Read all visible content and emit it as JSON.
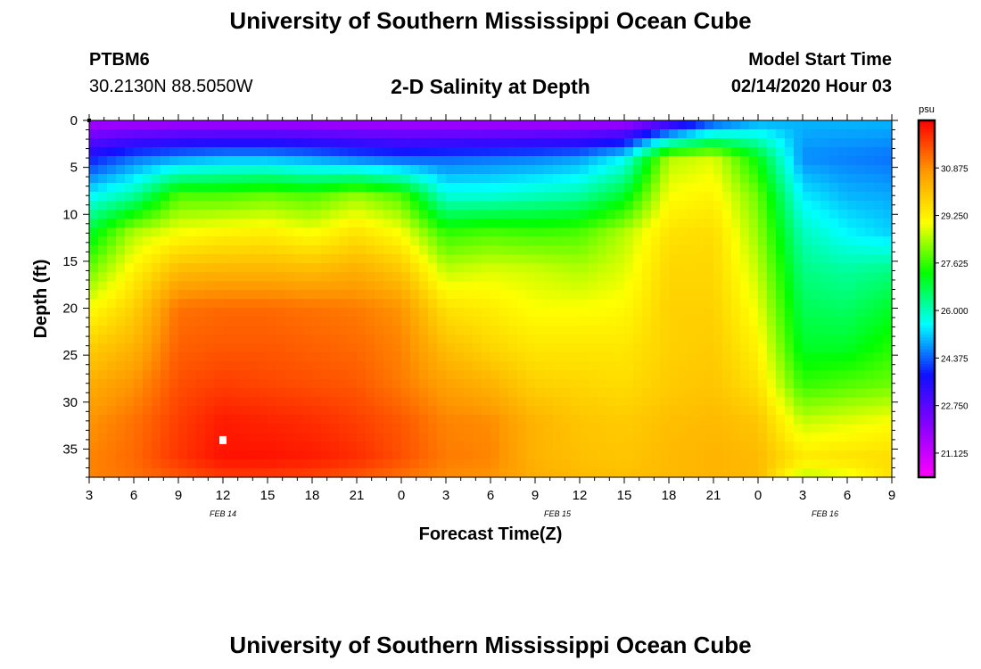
{
  "header": {
    "title": "University of Southern Mississippi Ocean Cube",
    "station_id": "PTBM6",
    "station_coords": "30.2130N 88.5050W",
    "plot_subtitle": "2-D Salinity at Depth",
    "model_start_label": "Model Start Time",
    "model_start_value": "02/14/2020 Hour 03"
  },
  "footer": {
    "title": "University of Southern Mississippi Ocean Cube"
  },
  "colors": {
    "colormap": [
      "#ff00ff",
      "#8a00ff",
      "#1010ff",
      "#00ffff",
      "#00ff00",
      "#ffff00",
      "#ff9900",
      "#ff0000"
    ],
    "marker": "#ffffff"
  },
  "chart_data": {
    "type": "heatmap",
    "title": "2-D Salinity at Depth",
    "xlabel": "Forecast Time(Z)",
    "ylabel": "Depth (ft)",
    "x_hours": [
      0,
      3,
      6,
      9,
      12,
      15,
      18,
      21,
      24,
      27,
      30,
      33,
      36,
      39,
      42,
      45,
      48,
      51,
      54
    ],
    "x_tick_labels": [
      "3",
      "6",
      "9",
      "12",
      "15",
      "18",
      "21",
      "0",
      "3",
      "6",
      "9",
      "12",
      "15",
      "18",
      "21",
      "0",
      "3",
      "6",
      "9"
    ],
    "date_labels": [
      {
        "hour": 9,
        "text": "FEB 14"
      },
      {
        "hour": 31.5,
        "text": "FEB 15"
      },
      {
        "hour": 49.5,
        "text": "FEB 16"
      }
    ],
    "y_tick_labels": [
      0,
      5,
      10,
      15,
      20,
      25,
      30,
      35
    ],
    "ylim": [
      0,
      38
    ],
    "colorbar": {
      "unit": "psu",
      "vmin": 20.3,
      "vmax": 32.5,
      "tick_values": [
        21.125,
        22.75,
        24.375,
        26.0,
        27.625,
        29.25,
        30.875
      ],
      "tick_labels": [
        "21.125",
        "22.750",
        "24.375",
        "26.000",
        "27.625",
        "29.250",
        "30.875"
      ]
    },
    "depth_levels": [
      0,
      4,
      8,
      12,
      16,
      20,
      24,
      28,
      32,
      36,
      38
    ],
    "salinity_psu": [
      [
        21.5,
        21.5,
        21.5,
        21.5,
        21.5,
        21.5,
        21.5,
        21.5,
        21.5,
        21.5,
        21.5,
        21.5,
        21.5,
        22.5,
        24.0,
        24.8,
        25.0,
        25.0,
        25.0
      ],
      [
        23.8,
        24.5,
        24.8,
        25.0,
        25.0,
        24.8,
        24.5,
        24.3,
        24.4,
        24.5,
        24.6,
        24.8,
        25.5,
        28.5,
        28.8,
        27.2,
        24.7,
        24.6,
        24.5
      ],
      [
        25.5,
        26.2,
        27.8,
        27.8,
        28.0,
        27.8,
        28.3,
        27.8,
        25.8,
        25.8,
        26.0,
        26.2,
        27.0,
        29.0,
        29.2,
        28.0,
        25.4,
        25.0,
        24.9
      ],
      [
        27.0,
        28.5,
        29.0,
        29.2,
        29.3,
        29.0,
        29.5,
        29.0,
        27.6,
        27.8,
        27.7,
        27.8,
        28.5,
        29.5,
        29.6,
        28.3,
        26.0,
        25.5,
        25.2
      ],
      [
        28.0,
        29.2,
        30.2,
        30.3,
        30.3,
        30.2,
        30.4,
        30.0,
        28.6,
        28.8,
        28.7,
        28.5,
        28.8,
        29.7,
        29.7,
        28.6,
        26.4,
        26.2,
        26.4
      ],
      [
        29.0,
        29.8,
        31.2,
        31.3,
        31.3,
        31.2,
        31.1,
        30.8,
        29.5,
        29.3,
        29.0,
        29.0,
        29.1,
        29.8,
        29.8,
        28.9,
        26.7,
        26.6,
        27.0
      ],
      [
        29.8,
        30.3,
        31.4,
        31.5,
        31.5,
        31.4,
        31.3,
        31.0,
        30.1,
        29.7,
        29.4,
        29.4,
        29.4,
        29.8,
        29.9,
        29.2,
        27.0,
        27.0,
        27.5
      ],
      [
        30.4,
        30.8,
        31.6,
        31.8,
        31.7,
        31.6,
        31.5,
        31.1,
        30.6,
        30.3,
        29.8,
        29.7,
        29.6,
        29.9,
        30.0,
        29.5,
        27.6,
        27.8,
        28.0
      ],
      [
        30.8,
        31.2,
        31.8,
        32.2,
        32.1,
        32.0,
        31.8,
        31.5,
        31.0,
        30.9,
        30.3,
        30.0,
        29.9,
        30.1,
        30.2,
        30.0,
        28.6,
        28.8,
        29.0
      ],
      [
        31.0,
        31.3,
        31.9,
        32.3,
        32.3,
        32.2,
        32.0,
        31.6,
        31.1,
        31.0,
        30.3,
        30.1,
        30.0,
        30.2,
        30.3,
        30.2,
        29.4,
        29.5,
        29.6
      ],
      [
        31.0,
        31.2,
        31.5,
        31.8,
        31.8,
        31.7,
        31.5,
        31.2,
        30.9,
        30.8,
        30.4,
        30.2,
        30.1,
        30.2,
        30.3,
        30.2,
        28.5,
        28.8,
        29.5
      ]
    ],
    "marker": {
      "hour": 9,
      "depth": 34
    }
  }
}
